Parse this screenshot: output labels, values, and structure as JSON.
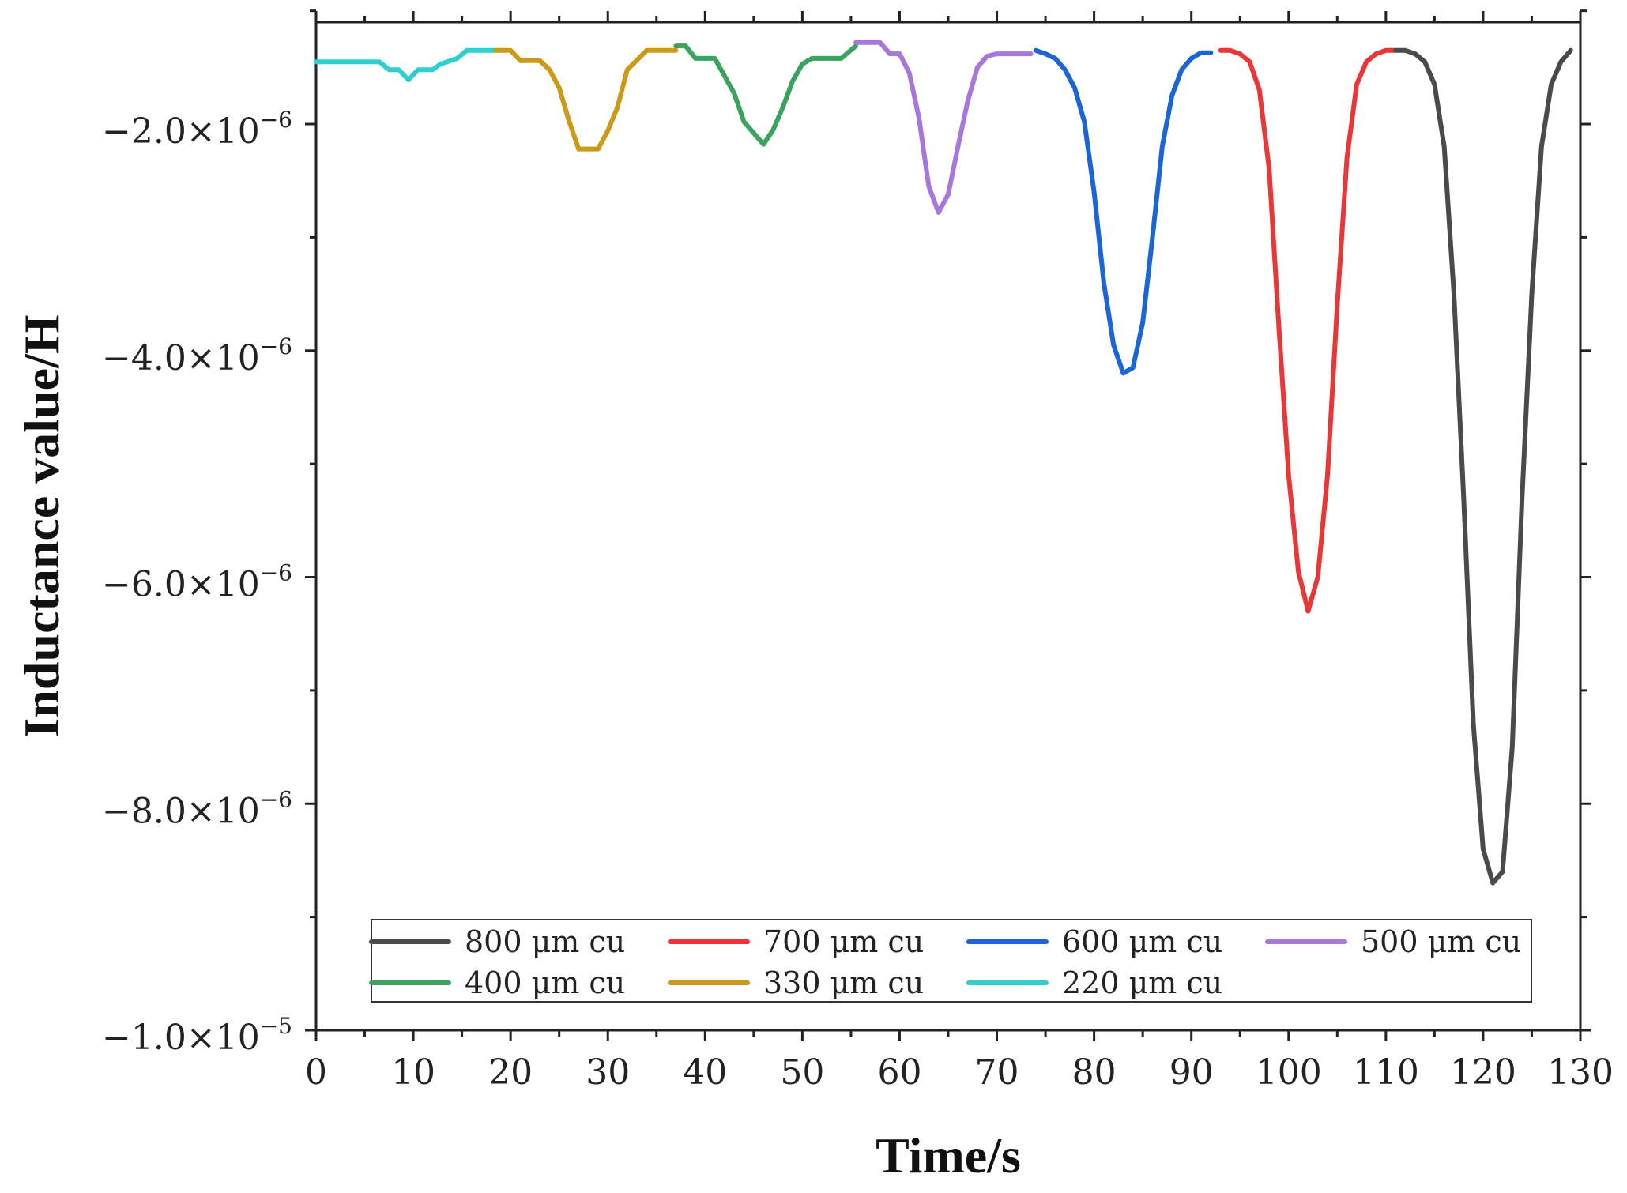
{
  "chart_data": {
    "type": "line",
    "title": "",
    "xlabel": "Time/s",
    "ylabel": "Inductance value/H",
    "xlim": [
      0,
      130
    ],
    "ylim": [
      -1e-05,
      -1.1e-06
    ],
    "x_major_ticks": [
      0,
      10,
      20,
      30,
      40,
      50,
      60,
      70,
      80,
      90,
      100,
      110,
      120,
      130
    ],
    "x_tick_labels": [
      "0",
      "10",
      "20",
      "30",
      "40",
      "50",
      "60",
      "70",
      "80",
      "90",
      "100",
      "110",
      "120",
      "130"
    ],
    "y_major_ticks": [
      -2e-06,
      -4e-06,
      -6e-06,
      -8e-06,
      -1e-05
    ],
    "y_tick_labels": [
      {
        "mantissa": "−2.0×10",
        "exp": "−6"
      },
      {
        "mantissa": "−4.0×10",
        "exp": "−6"
      },
      {
        "mantissa": "−6.0×10",
        "exp": "−6"
      },
      {
        "mantissa": "−8.0×10",
        "exp": "−6"
      },
      {
        "mantissa": "−1.0×10",
        "exp": "−5"
      }
    ],
    "legend_position": "bottom",
    "legend_order": [
      "800 μm cu",
      "700 μm cu",
      "600 μm cu",
      "500 μm cu",
      "400 μm cu",
      "330 μm cu",
      "220 μm cu"
    ],
    "series": [
      {
        "name": "220 μm cu",
        "color": "#2ECFCF",
        "x": [
          0,
          3,
          6.5,
          7.5,
          8.5,
          9.5,
          10.5,
          12,
          12.8,
          13.5,
          14.5,
          15.5,
          18.5
        ],
        "y": [
          -1.45e-06,
          -1.45e-06,
          -1.45e-06,
          -1.52e-06,
          -1.52e-06,
          -1.61e-06,
          -1.52e-06,
          -1.52e-06,
          -1.47e-06,
          -1.45e-06,
          -1.42e-06,
          -1.35e-06,
          -1.35e-06
        ]
      },
      {
        "name": "330 μm cu",
        "color": "#CC9A17",
        "x": [
          18.5,
          20,
          21,
          23,
          24,
          25,
          26,
          27,
          29,
          30,
          31,
          32,
          34,
          37
        ],
        "y": [
          -1.35e-06,
          -1.35e-06,
          -1.44e-06,
          -1.44e-06,
          -1.52e-06,
          -1.68e-06,
          -1.97e-06,
          -2.22e-06,
          -2.22e-06,
          -2.06e-06,
          -1.85e-06,
          -1.52e-06,
          -1.35e-06,
          -1.35e-06
        ]
      },
      {
        "name": "400 μm cu",
        "color": "#3AA45E",
        "x": [
          37,
          38,
          39,
          41,
          43,
          44,
          46,
          47,
          48,
          49,
          50,
          51,
          54,
          55.5
        ],
        "y": [
          -1.31e-06,
          -1.31e-06,
          -1.42e-06,
          -1.42e-06,
          -1.73e-06,
          -1.98e-06,
          -2.18e-06,
          -2.05e-06,
          -1.85e-06,
          -1.62e-06,
          -1.47e-06,
          -1.42e-06,
          -1.42e-06,
          -1.31e-06
        ]
      },
      {
        "name": "500 μm cu",
        "color": "#A877DC",
        "x": [
          55.5,
          56,
          58,
          59,
          60,
          61,
          62,
          63,
          64,
          65,
          66,
          67,
          68,
          69,
          70,
          71,
          73.5
        ],
        "y": [
          -1.28e-06,
          -1.28e-06,
          -1.28e-06,
          -1.38e-06,
          -1.38e-06,
          -1.55e-06,
          -1.95e-06,
          -2.55e-06,
          -2.78e-06,
          -2.62e-06,
          -2.2e-06,
          -1.8e-06,
          -1.5e-06,
          -1.4e-06,
          -1.38e-06,
          -1.38e-06,
          -1.38e-06
        ]
      },
      {
        "name": "600 μm cu",
        "color": "#1A66D8",
        "x": [
          74,
          75,
          76,
          77,
          78,
          79,
          80,
          81,
          82,
          83,
          84,
          85,
          86,
          87,
          88,
          89,
          90,
          91,
          92
        ],
        "y": [
          -1.35e-06,
          -1.38e-06,
          -1.42e-06,
          -1.52e-06,
          -1.68e-06,
          -1.98e-06,
          -2.6e-06,
          -3.4e-06,
          -3.95e-06,
          -4.2e-06,
          -4.15e-06,
          -3.75e-06,
          -3e-06,
          -2.2e-06,
          -1.75e-06,
          -1.52e-06,
          -1.42e-06,
          -1.37e-06,
          -1.37e-06
        ]
      },
      {
        "name": "700 μm cu",
        "color": "#E93737",
        "x": [
          93,
          94,
          95,
          96,
          97,
          98,
          99,
          100,
          101,
          102,
          103,
          104,
          105,
          106,
          107,
          108,
          109,
          110,
          111
        ],
        "y": [
          -1.35e-06,
          -1.35e-06,
          -1.38e-06,
          -1.45e-06,
          -1.7e-06,
          -2.4e-06,
          -3.8e-06,
          -5.1e-06,
          -5.95e-06,
          -6.3e-06,
          -6e-06,
          -5.1e-06,
          -3.6e-06,
          -2.3e-06,
          -1.65e-06,
          -1.45e-06,
          -1.38e-06,
          -1.35e-06,
          -1.35e-06
        ]
      },
      {
        "name": "800 μm cu",
        "color": "#4A4A4A",
        "x": [
          111,
          112,
          113,
          114,
          115,
          116,
          117,
          118,
          119,
          120,
          121,
          122,
          123,
          124,
          125,
          126,
          127,
          128,
          129
        ],
        "y": [
          -1.35e-06,
          -1.35e-06,
          -1.38e-06,
          -1.45e-06,
          -1.65e-06,
          -2.2e-06,
          -3.5e-06,
          -5.3e-06,
          -7.3e-06,
          -8.4e-06,
          -8.7e-06,
          -8.6e-06,
          -7.5e-06,
          -5.3e-06,
          -3.5e-06,
          -2.2e-06,
          -1.65e-06,
          -1.45e-06,
          -1.35e-06
        ]
      }
    ]
  }
}
